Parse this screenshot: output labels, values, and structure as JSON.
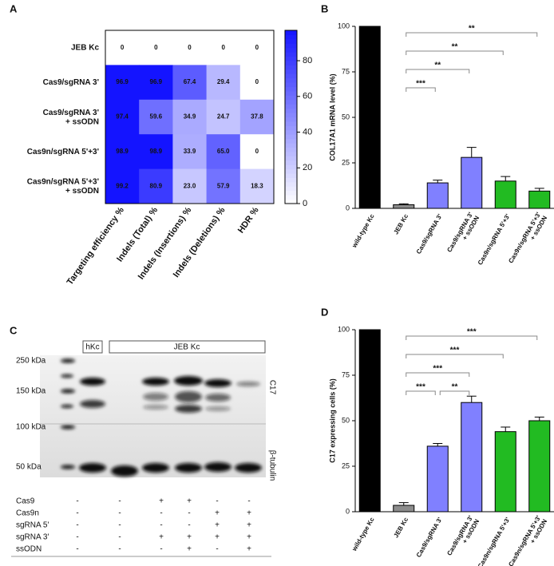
{
  "panel_labels": [
    "A",
    "B",
    "C",
    "D"
  ],
  "chart_data": [
    {
      "type": "heatmap",
      "rows": [
        [
          "JEB Kc"
        ],
        [
          "Cas9/sgRNA 3'"
        ],
        [
          "Cas9/sgRNA 3'",
          "+ ssODN"
        ],
        [
          "Cas9n/sgRNA 5'+3'"
        ],
        [
          "Cas9n/sgRNA 5'+3'",
          "+ ssODN"
        ]
      ],
      "columns": [
        "Targeting efficiency %",
        "Indels (Total) %",
        "Indels (Insertions) %",
        "Indels (Deletions) %",
        "HDR %"
      ],
      "values": [
        [
          0,
          0,
          0,
          0,
          0
        ],
        [
          96.9,
          96.9,
          67.4,
          29.4,
          0
        ],
        [
          97.4,
          59.6,
          34.9,
          24.7,
          37.8
        ],
        [
          98.9,
          98.9,
          33.9,
          65,
          0
        ],
        [
          99.2,
          80.9,
          23,
          57.9,
          18.3
        ]
      ],
      "value_labels": [
        [
          "0",
          "0",
          "0",
          "0",
          "0"
        ],
        [
          "96.9",
          "96.9",
          "67.4",
          "29.4",
          "0"
        ],
        [
          "97.4",
          "59.6",
          "34.9",
          "24.7",
          "37.8"
        ],
        [
          "98.9",
          "98.9",
          "33.9",
          "65.0",
          "0"
        ],
        [
          "99.2",
          "80.9",
          "23.0",
          "57.9",
          "18.3"
        ]
      ],
      "color": "#1414ff",
      "zlim": [
        0,
        97
      ],
      "zticks": [
        0,
        20,
        40,
        60,
        80
      ]
    },
    {
      "type": "bar",
      "ylabel": "COL17A1 mRNA level (%)",
      "categories": [
        [
          "wild-type Kc"
        ],
        [
          "JEB Kc"
        ],
        [
          "Cas9/sgRNA 3'"
        ],
        [
          "Cas9/sgRNA 3'",
          "+ ssODN"
        ],
        [
          "Cas9n/sgRNA 5'+3'"
        ],
        [
          "Cas9n/sgRNA 5'+3'",
          "+ ssODN"
        ]
      ],
      "values": [
        100,
        2,
        14,
        28,
        15,
        9.5
      ],
      "errors": [
        0,
        0.5,
        1.5,
        5.5,
        2.5,
        1.5
      ],
      "colors": [
        "#000000",
        "#8c8c8c",
        "#8080ff",
        "#8080ff",
        "#22bb22",
        "#22bb22"
      ],
      "ylim": [
        0,
        100
      ],
      "yticks": [
        0,
        25,
        50,
        75,
        100
      ],
      "significance": [
        {
          "from": 1,
          "to": 2,
          "label": "***"
        },
        {
          "from": 1,
          "to": 3,
          "label": "**"
        },
        {
          "from": 1,
          "to": 4,
          "label": "**"
        },
        {
          "from": 1,
          "to": 5,
          "label": "**"
        }
      ]
    },
    {
      "type": "bar",
      "ylabel": "C17 expressing cells (%)",
      "categories": [
        [
          "wild-type Kc"
        ],
        [
          "JEB Kc"
        ],
        [
          "Cas9/sgRNA 3'"
        ],
        [
          "Cas9/sgRNA 3'",
          "+ ssODN"
        ],
        [
          "Cas9n/sgRNA 5'+3'"
        ],
        [
          "Cas9n/sgRNA 5'+3'",
          "+ ssODN"
        ]
      ],
      "values": [
        100,
        3.5,
        36,
        60,
        44,
        50
      ],
      "errors": [
        0,
        1.5,
        1.5,
        3.5,
        2.5,
        2
      ],
      "colors": [
        "#000000",
        "#8c8c8c",
        "#8080ff",
        "#8080ff",
        "#22bb22",
        "#22bb22"
      ],
      "ylim": [
        0,
        100
      ],
      "yticks": [
        0,
        25,
        50,
        75,
        100
      ],
      "significance": [
        {
          "from": 1,
          "to": 2,
          "label": "***"
        },
        {
          "from": 2,
          "to": 3,
          "label": "**"
        },
        {
          "from": 1,
          "to": 3,
          "label": "***"
        },
        {
          "from": 1,
          "to": 4,
          "label": "***"
        },
        {
          "from": 1,
          "to": 5,
          "label": "***"
        }
      ]
    }
  ],
  "blot": {
    "lane_groups": [
      "hKc",
      "JEB Kc"
    ],
    "markers": [
      "250 kDa",
      "150 kDa",
      "100 kDa",
      "50 kDa"
    ],
    "bands": [
      "C17",
      "β-tubulin"
    ],
    "conditions": [
      {
        "name": "Cas9",
        "signs": [
          "-",
          "-",
          "+",
          "+",
          "-",
          "-"
        ]
      },
      {
        "name": "Cas9n",
        "signs": [
          "-",
          "-",
          "-",
          "-",
          "+",
          "+"
        ]
      },
      {
        "name": "sgRNA 5'",
        "signs": [
          "-",
          "-",
          "-",
          "-",
          "+",
          "+"
        ]
      },
      {
        "name": "sgRNA 3'",
        "signs": [
          "-",
          "-",
          "+",
          "+",
          "+",
          "+"
        ]
      },
      {
        "name": "ssODN",
        "signs": [
          "-",
          "-",
          "-",
          "+",
          "-",
          "+"
        ]
      }
    ]
  }
}
